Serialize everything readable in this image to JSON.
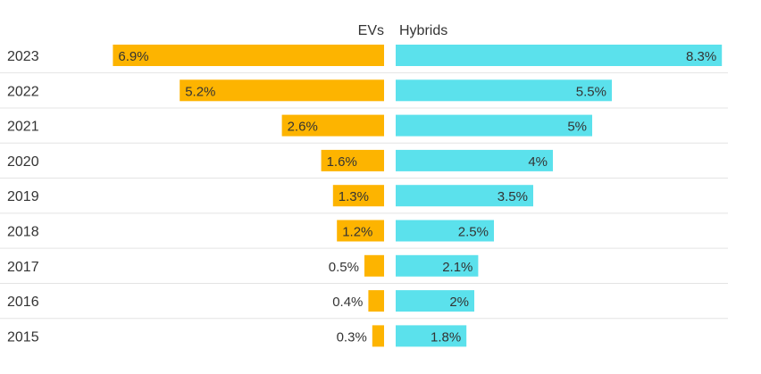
{
  "chart_data": {
    "type": "bar",
    "orientation": "horizontal-diverging",
    "title": "",
    "xlabel": "",
    "ylabel": "",
    "categories": [
      "2023",
      "2022",
      "2021",
      "2020",
      "2019",
      "2018",
      "2017",
      "2016",
      "2015"
    ],
    "series": [
      {
        "name": "EVs",
        "color": "#FDB400",
        "direction": "left",
        "values": [
          6.9,
          5.2,
          2.6,
          1.6,
          1.3,
          1.2,
          0.5,
          0.4,
          0.3
        ],
        "labels": [
          "6.9%",
          "5.2%",
          "2.6%",
          "1.6%",
          "1.3%",
          "1.2%",
          "0.5%",
          "0.4%",
          "0.3%"
        ]
      },
      {
        "name": "Hybrids",
        "color": "#5BE1EC",
        "direction": "right",
        "values": [
          8.3,
          5.5,
          5.0,
          4.0,
          3.5,
          2.5,
          2.1,
          2.0,
          1.8
        ],
        "labels": [
          "8.3%",
          "5.5%",
          "5%",
          "4%",
          "3.5%",
          "2.5%",
          "2.1%",
          "2%",
          "1.8%"
        ]
      }
    ],
    "grid": "horizontal separators",
    "legend": "column headers above bars"
  }
}
